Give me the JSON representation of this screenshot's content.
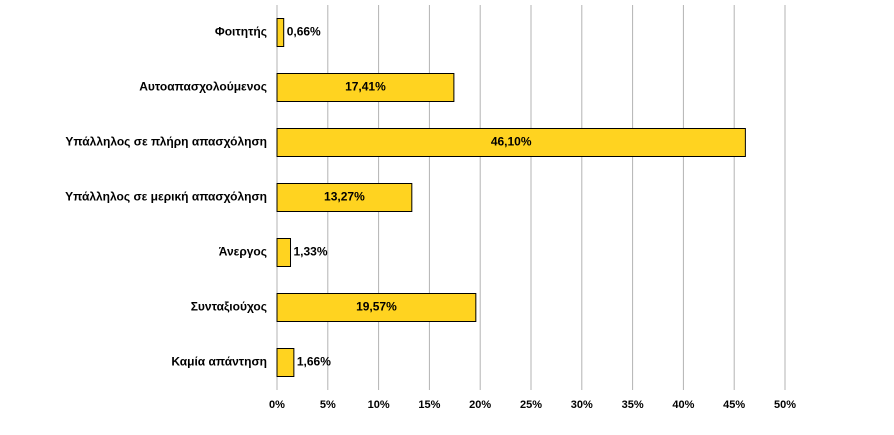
{
  "chart_data": {
    "type": "hbar",
    "categories": [
      "Φοιτητής",
      "Αυτοαπασχολούμενος",
      "Υπάλληλος σε πλήρη απασχόληση",
      "Υπάλληλος σε μερική απασχόληση",
      "Άνεργος",
      "Συνταξιούχος",
      "Καμία απάντηση"
    ],
    "values": [
      0.66,
      17.41,
      46.1,
      13.27,
      1.33,
      19.57,
      1.66
    ],
    "value_labels": [
      "0,66%",
      "17,41%",
      "46,10%",
      "13,27%",
      "1,33%",
      "19,57%",
      "1,66%"
    ],
    "color": "#ffd320",
    "xlim": [
      0,
      50
    ],
    "xticks": [
      {
        "value": 0,
        "label": "0%"
      },
      {
        "value": 5,
        "label": "5%"
      },
      {
        "value": 10,
        "label": "10%"
      },
      {
        "value": 15,
        "label": "15%"
      },
      {
        "value": 20,
        "label": "20%"
      },
      {
        "value": 25,
        "label": "25%"
      },
      {
        "value": 30,
        "label": "30%"
      },
      {
        "value": 35,
        "label": "35%"
      },
      {
        "value": 40,
        "label": "40%"
      },
      {
        "value": 45,
        "label": "45%"
      },
      {
        "value": 50,
        "label": "50%"
      }
    ],
    "grid": true
  }
}
